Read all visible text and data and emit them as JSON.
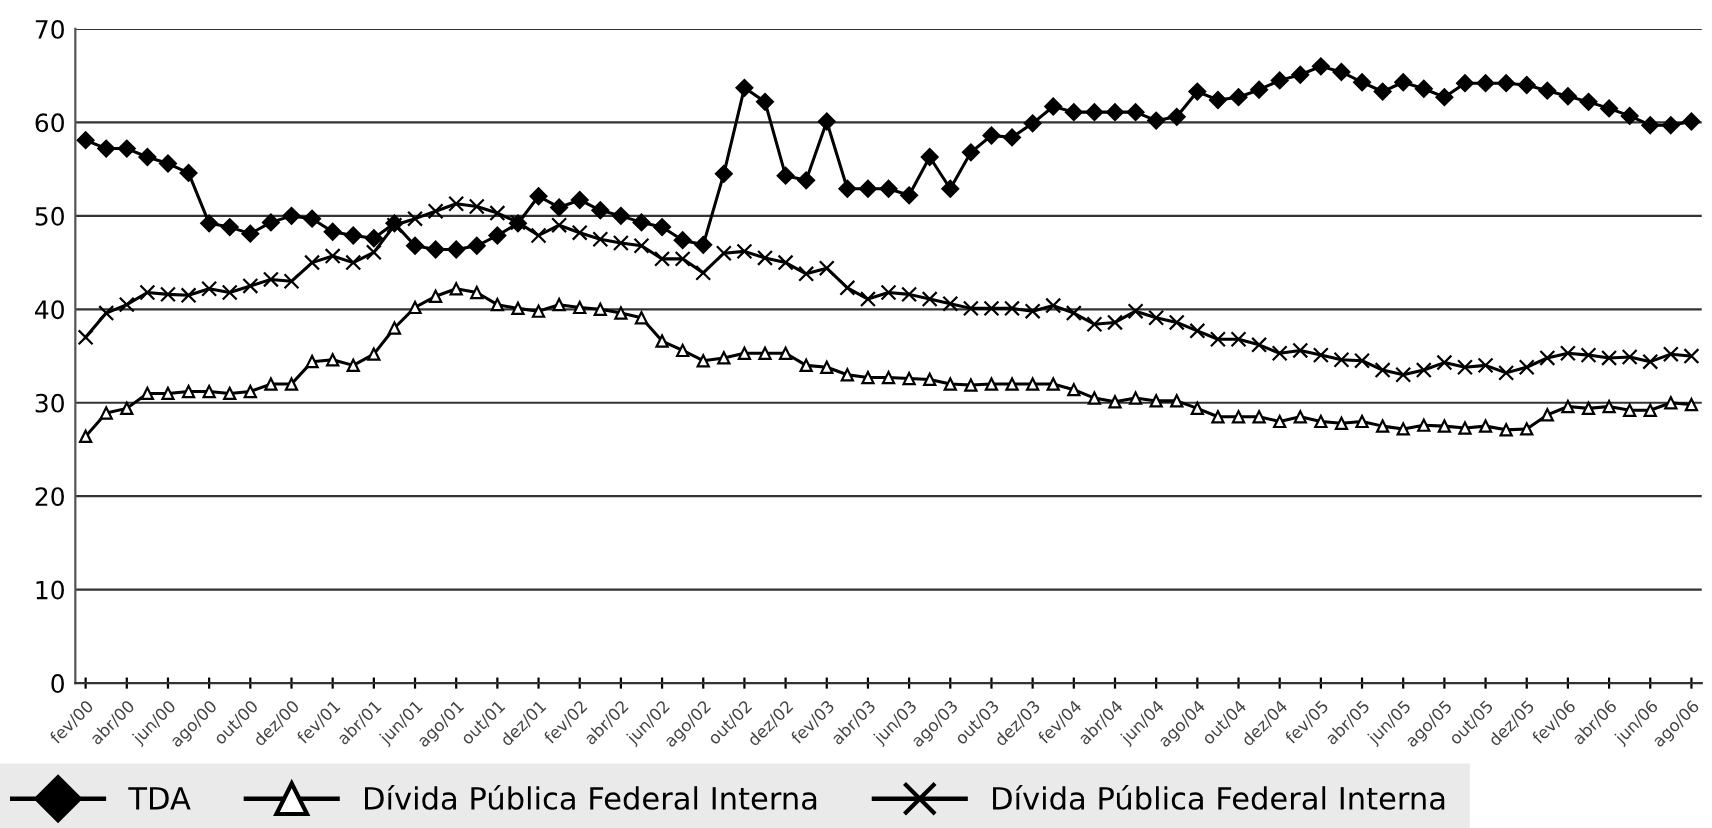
{
  "chart_data": {
    "type": "line",
    "categories": [
      "fev/00",
      null,
      "abr/00",
      null,
      "jun/00",
      null,
      "ago/00",
      null,
      "out/00",
      null,
      "dez/00",
      null,
      "fev/01",
      null,
      "abr/01",
      null,
      "jun/01",
      null,
      "ago/01",
      null,
      "out/01",
      null,
      "dez/01",
      null,
      "fev/02",
      null,
      "abr/02",
      null,
      "jun/02",
      null,
      "ago/02",
      null,
      "out/02",
      null,
      "dez/02",
      null,
      "fev/03",
      null,
      "abr/03",
      null,
      "jun/03",
      null,
      "ago/03",
      null,
      "out/03",
      null,
      "dez/03",
      null,
      "fev/04",
      null,
      "abr/04",
      null,
      "jun/04",
      null,
      "ago/04",
      null,
      "out/04",
      null,
      "dez/04",
      null,
      "fev/05",
      null,
      "abr/05",
      null,
      "jun/05",
      null,
      "ago/05",
      null,
      "out/05",
      null,
      "dez/05",
      null,
      "fev/06",
      null,
      "abr/06",
      null,
      "jun/06",
      null,
      "ago/06"
    ],
    "series": [
      {
        "name": "TDA",
        "color": "#000000",
        "marker": "diamond",
        "values": [
          58.1,
          57.2,
          57.2,
          56.3,
          55.6,
          54.6,
          49.2,
          48.8,
          48.1,
          49.3,
          50.0,
          49.7,
          48.3,
          47.9,
          47.6,
          49.2,
          46.8,
          46.4,
          46.4,
          46.8,
          47.9,
          49.2,
          52.1,
          50.9,
          51.7,
          50.6,
          50.0,
          49.3,
          48.8,
          47.4,
          46.9,
          54.5,
          63.7,
          62.2,
          54.3,
          53.8,
          60.1,
          52.9,
          52.9,
          52.9,
          52.2,
          56.3,
          52.9,
          56.8,
          58.6,
          58.4,
          59.9,
          61.7,
          61.1,
          61.1,
          61.1,
          61.1,
          60.2,
          60.6,
          63.3,
          62.4,
          62.7,
          63.5,
          64.5,
          65.1,
          66.0,
          65.4,
          64.3,
          63.3,
          64.3,
          63.6,
          62.7,
          64.2,
          64.2,
          64.2,
          64.0,
          63.4,
          62.8,
          62.2,
          61.5,
          60.7,
          59.7,
          59.7,
          60.1
        ]
      },
      {
        "name": "Dívida Pública Federal Interna",
        "color": "#000000",
        "marker": "triangle",
        "values": [
          26.4,
          28.9,
          29.4,
          31.0,
          31.0,
          31.2,
          31.2,
          31.0,
          31.2,
          32.0,
          32.0,
          34.4,
          34.6,
          34.0,
          35.2,
          38.0,
          40.2,
          41.4,
          42.2,
          41.8,
          40.5,
          40.1,
          39.8,
          40.5,
          40.2,
          40.0,
          39.6,
          39.1,
          36.6,
          35.6,
          34.5,
          34.8,
          35.3,
          35.3,
          35.3,
          34.0,
          33.8,
          33.0,
          32.7,
          32.7,
          32.6,
          32.5,
          32.0,
          31.9,
          32.0,
          32.0,
          32.0,
          32.0,
          31.4,
          30.5,
          30.1,
          30.5,
          30.2,
          30.2,
          29.4,
          28.5,
          28.5,
          28.5,
          28.0,
          28.5,
          28.0,
          27.8,
          28.0,
          27.5,
          27.2,
          27.6,
          27.5,
          27.3,
          27.5,
          27.1,
          27.2,
          28.7,
          29.6,
          29.4,
          29.6,
          29.2,
          29.2,
          30.0,
          29.8
        ]
      },
      {
        "name": "Dívida Pública Federal Interna",
        "color": "#000000",
        "marker": "cross",
        "values": [
          37.0,
          39.6,
          40.5,
          41.8,
          41.6,
          41.5,
          42.2,
          41.8,
          42.5,
          43.2,
          43.0,
          45.0,
          45.7,
          45.0,
          46.1,
          49.0,
          49.7,
          50.5,
          51.3,
          51.0,
          50.3,
          49.3,
          47.9,
          49.0,
          48.2,
          47.5,
          47.1,
          46.8,
          45.4,
          45.4,
          43.9,
          46.0,
          46.2,
          45.5,
          45.0,
          43.8,
          44.4,
          42.3,
          41.1,
          41.8,
          41.6,
          41.1,
          40.6,
          40.1,
          40.1,
          40.1,
          39.8,
          40.4,
          39.6,
          38.4,
          38.6,
          39.8,
          39.1,
          38.6,
          37.7,
          36.8,
          36.8,
          36.2,
          35.3,
          35.6,
          35.1,
          34.6,
          34.5,
          33.5,
          33.0,
          33.5,
          34.3,
          33.8,
          34.0,
          33.2,
          33.8,
          34.8,
          35.3,
          35.1,
          34.8,
          34.9,
          34.4,
          35.2,
          35.0
        ]
      }
    ],
    "ylim": [
      0,
      70
    ],
    "yticks": [
      0,
      10,
      20,
      30,
      40,
      50,
      60,
      70
    ],
    "grid": "y",
    "legend": "bottom"
  }
}
